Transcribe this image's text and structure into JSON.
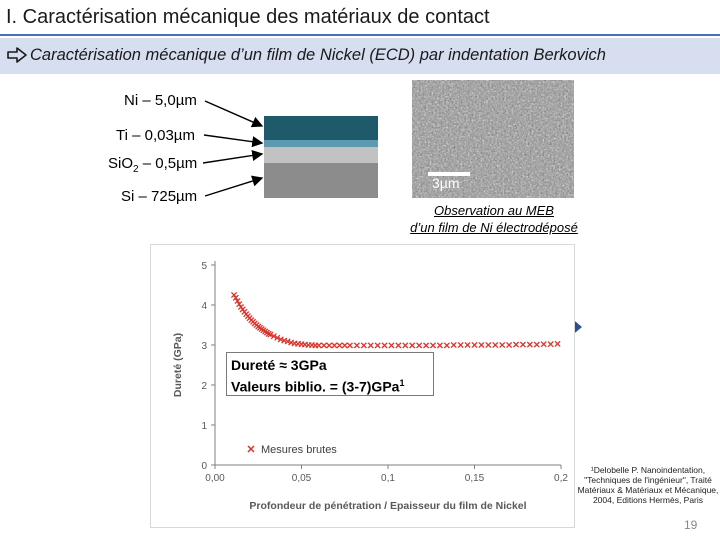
{
  "slide": {
    "title": "I. Caractérisation mécanique des matériaux de contact",
    "subtitle": "Caractérisation mécanique d’un film de Nickel (ECD) par indentation Berkovich",
    "page_number": "19"
  },
  "layers": [
    {
      "label": "Ni – 5,0µm",
      "color": "#1e5a6a"
    },
    {
      "label": "Ti – 0,03µm",
      "color": "#5c9bb1"
    },
    {
      "label_main": "SiO",
      "label_sub": "2",
      "label_rest": " – 0,5µm",
      "color": "#c2c2c2"
    },
    {
      "label": "Si – 725µm",
      "color": "#8c8c8c"
    }
  ],
  "sem": {
    "scale_label": "3µm",
    "caption_line1": "Observation au MEB",
    "caption_line2": "d’un film de Ni électrodéposé"
  },
  "callout": {
    "line1": "Dureté ≈ 3GPa",
    "line2_main": "Valeurs biblio. = (3-7)GPa",
    "line2_sup": "1"
  },
  "reference": {
    "text": "¹Delobelle P. Nanoindentation, \"Techniques de l'ingénieur\", Traité Matériaux & Matériaux et Mécanique, 2004, Editions Hermès, Paris"
  },
  "chart_data": {
    "type": "scatter",
    "xlabel": "Profondeur de pénétration / Epaisseur du film de Nickel",
    "ylabel": "Dureté (GPa)",
    "xlim": [
      0,
      0.2
    ],
    "ylim": [
      0,
      5
    ],
    "x_ticks": [
      "0,00",
      "0,05",
      "0,1",
      "0,15",
      "0,2"
    ],
    "y_ticks": [
      "0",
      "1",
      "2",
      "3",
      "4",
      "5"
    ],
    "grid": false,
    "legend_position": "bottom-left",
    "series": [
      {
        "name": "Mesures brutes",
        "color": "#d9342b",
        "marker": "x",
        "x": [
          0.011,
          0.012,
          0.013,
          0.014,
          0.015,
          0.016,
          0.017,
          0.018,
          0.019,
          0.02,
          0.021,
          0.022,
          0.023,
          0.024,
          0.025,
          0.026,
          0.027,
          0.028,
          0.029,
          0.03,
          0.031,
          0.032,
          0.034,
          0.036,
          0.038,
          0.04,
          0.042,
          0.044,
          0.046,
          0.048,
          0.05,
          0.052,
          0.054,
          0.056,
          0.058,
          0.06,
          0.063,
          0.066,
          0.069,
          0.072,
          0.075,
          0.078,
          0.082,
          0.086,
          0.09,
          0.094,
          0.098,
          0.102,
          0.106,
          0.11,
          0.114,
          0.118,
          0.122,
          0.126,
          0.13,
          0.134,
          0.138,
          0.142,
          0.146,
          0.15,
          0.154,
          0.158,
          0.162,
          0.166,
          0.17,
          0.174,
          0.178,
          0.182,
          0.186,
          0.19,
          0.194,
          0.198
        ],
        "y": [
          4.25,
          4.18,
          4.1,
          4.02,
          3.95,
          3.89,
          3.83,
          3.77,
          3.72,
          3.67,
          3.62,
          3.58,
          3.54,
          3.5,
          3.46,
          3.43,
          3.4,
          3.37,
          3.34,
          3.31,
          3.28,
          3.26,
          3.22,
          3.18,
          3.14,
          3.11,
          3.09,
          3.06,
          3.04,
          3.03,
          3.02,
          3.01,
          3.0,
          3.0,
          2.99,
          2.99,
          2.99,
          2.99,
          2.99,
          2.99,
          2.99,
          2.99,
          2.99,
          2.99,
          2.99,
          2.99,
          2.99,
          2.99,
          2.99,
          2.99,
          2.99,
          2.99,
          2.99,
          2.99,
          2.99,
          2.99,
          3.0,
          3.0,
          3.0,
          3.0,
          3.0,
          3.0,
          3.0,
          3.0,
          3.0,
          3.01,
          3.01,
          3.01,
          3.01,
          3.02,
          3.02,
          3.03
        ]
      }
    ]
  }
}
